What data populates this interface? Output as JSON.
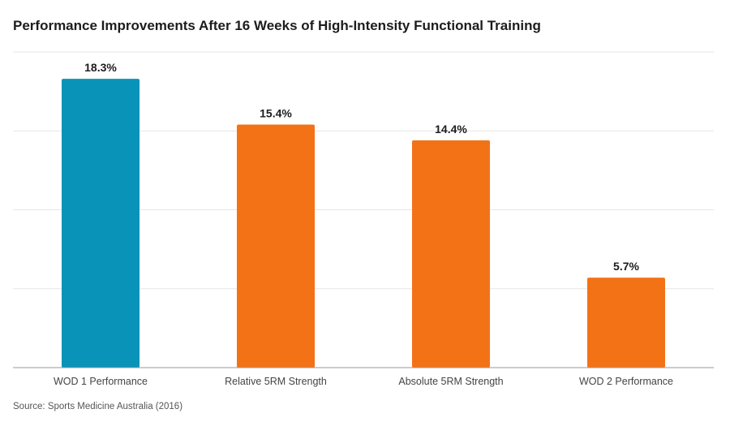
{
  "chart_data": {
    "type": "bar",
    "title": "Performance Improvements After 16 Weeks of High-Intensity Functional Training",
    "categories": [
      "WOD 1 Performance",
      "Relative 5RM Strength",
      "Absolute 5RM Strength",
      "WOD 2 Performance"
    ],
    "values": [
      18.3,
      15.4,
      14.4,
      5.7
    ],
    "data_labels": [
      "18.3%",
      "15.4%",
      "14.4%",
      "5.7%"
    ],
    "bar_colors": [
      "#0a93b8",
      "#f47216",
      "#f47216",
      "#f47216"
    ],
    "xlabel": "",
    "ylabel": "",
    "ylim": [
      0,
      20
    ],
    "grid": true,
    "y_tick_labels_shown": false,
    "legend": "none",
    "source": "Source: Sports Medicine Australia (2016)"
  }
}
